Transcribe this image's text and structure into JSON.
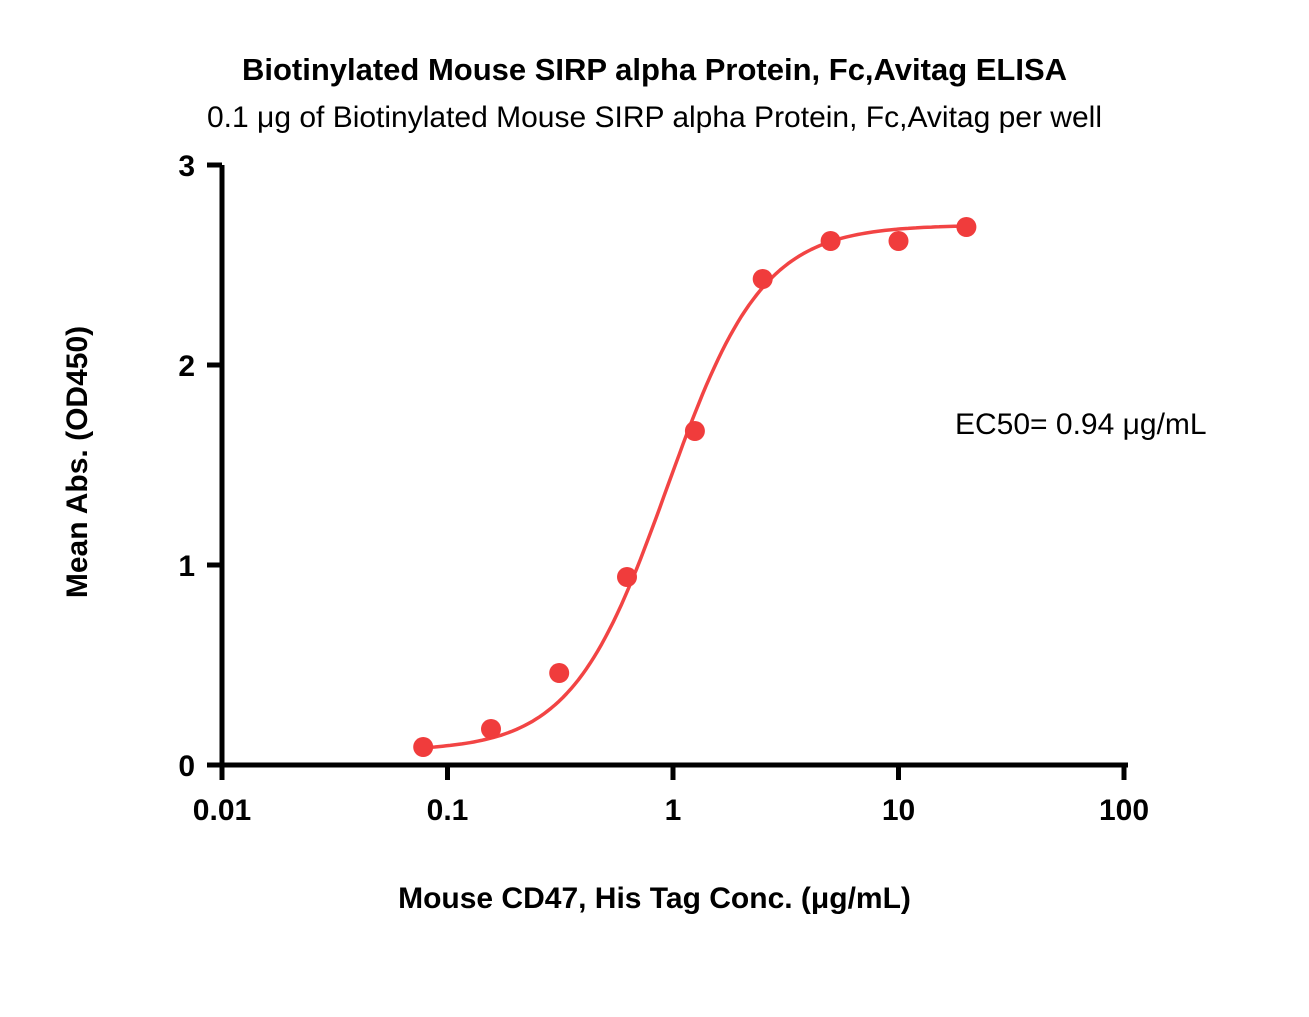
{
  "chart_data": {
    "type": "scatter",
    "title": "Biotinylated Mouse SIRP alpha Protein, Fc,Avitag ELISA",
    "subtitle": "0.1 μg of Biotinylated Mouse SIRP alpha Protein, Fc,Avitag per well",
    "xlabel": "Mouse CD47, His Tag Conc. (μg/mL)",
    "ylabel": "Mean Abs. (OD450)",
    "annotation": "EC50= 0.94 μg/mL",
    "ec50_value": 0.94,
    "xscale": "log",
    "xlim": [
      0.01,
      100
    ],
    "ylim": [
      0,
      3
    ],
    "xticks": [
      0.01,
      0.1,
      1,
      10,
      100
    ],
    "xtick_labels": [
      "0.01",
      "0.1",
      "1",
      "10",
      "100"
    ],
    "yticks": [
      0,
      1,
      2,
      3
    ],
    "ytick_labels": [
      "0",
      "1",
      "2",
      "3"
    ],
    "grid": false,
    "legend": false,
    "x": [
      0.078,
      0.156,
      0.313,
      0.625,
      1.25,
      2.5,
      5,
      10,
      20
    ],
    "y": [
      0.09,
      0.18,
      0.46,
      0.94,
      1.67,
      2.43,
      2.62,
      2.62,
      2.69
    ],
    "fit": {
      "model": "4PL",
      "bottom": 0.07,
      "top": 2.7,
      "ec50": 0.94,
      "hill": 2.05
    },
    "colors": {
      "points": "#F03C3C",
      "curve": "#F24444",
      "axis": "#000000",
      "text": "#000000",
      "background": "#FFFFFF"
    }
  }
}
